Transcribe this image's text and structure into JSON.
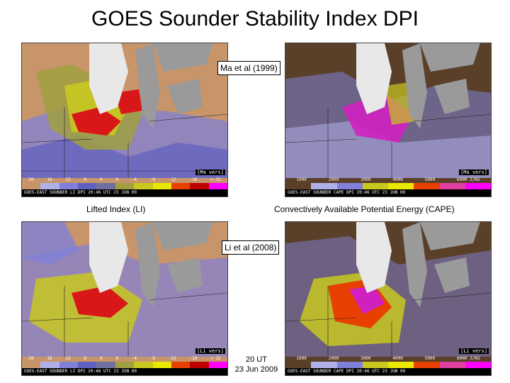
{
  "title": "GOES Sounder Stability Index DPI",
  "method_top": "Ma et al (1999)",
  "method_bottom": "Li et al (2008)",
  "caption_li": "Lifted Index (LI)",
  "caption_cape": "Convectively Available Potential Energy (CAPE)",
  "time_line1": "20 UT",
  "time_line2": "23 Jun 2009",
  "version_tag_top": "[Ma vers]",
  "version_tag_bottom": "[Li vers]",
  "li_colorbar": {
    "labels": [
      "20",
      "16",
      "12",
      "8",
      "4",
      "0",
      "-4",
      "-8",
      "-12",
      "-16",
      "<-32"
    ],
    "colors": [
      "#c8956a",
      "#b0b0e8",
      "#8080d8",
      "#6060c0",
      "#7070a0",
      "#a0a040",
      "#c8c820",
      "#e8e800",
      "#e84000",
      "#c00000",
      "#ff00ff"
    ]
  },
  "cape_colorbar": {
    "labels": [
      "1000",
      "2000",
      "3000",
      "4000",
      "5000",
      "6000 J/KG"
    ],
    "colors": [
      "#5a4028",
      "#b0b0e8",
      "#8080d8",
      "#c8c820",
      "#e8e800",
      "#e84000",
      "#e040a0",
      "#ff00ff"
    ]
  },
  "strip_li": "GOES-EAST SOUNDER  LI  DPI  20:46  UTC  23 JUN 09",
  "strip_cape": "GOES-EAST SOUNDER  CAPE  DPI  20:46  UTC  23 JUN 09",
  "colors": {
    "lake": "#9a9a9a",
    "cloud": "#e8e8e8",
    "clear_li": "#c8956a",
    "clear_cape": "#5a4028",
    "unstable_red": "#d81818",
    "unstable_magenta": "#d020c0",
    "yellow": "#c8c820",
    "blue": "#8080d8"
  }
}
